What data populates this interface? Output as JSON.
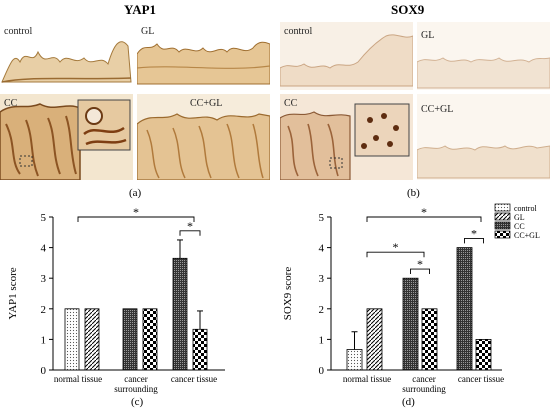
{
  "panels": {
    "a": {
      "title": "YAP1",
      "caption": "(a)",
      "labels": {
        "control": "control",
        "gl": "GL",
        "cc": "CC",
        "ccgl": "CC+GL"
      }
    },
    "b": {
      "title": "SOX9",
      "caption": "(b)",
      "labels": {
        "control": "control",
        "gl": "GL",
        "cc": "CC",
        "ccgl": "CC+GL"
      }
    },
    "c": {
      "caption": "(c)"
    },
    "d": {
      "caption": "(d)"
    }
  },
  "chart_data": [
    {
      "type": "bar",
      "panel": "c",
      "ylabel": "YAP1 score",
      "ylim": [
        0,
        5
      ],
      "yticks": [
        0,
        1,
        2,
        3,
        4,
        5
      ],
      "categories": [
        "normal tissue",
        "cancer surrounding tissue",
        "cancer tissue"
      ],
      "category_lines": [
        [
          "normal tissue"
        ],
        [
          "cancer",
          "surrounding",
          "tissue"
        ],
        [
          "cancer tissue"
        ]
      ],
      "series": [
        {
          "name": "control",
          "pattern": "dots",
          "values": [
            2,
            null,
            null
          ],
          "errors": [
            0,
            null,
            null
          ]
        },
        {
          "name": "GL",
          "pattern": "diag",
          "values": [
            2,
            null,
            null
          ],
          "errors": [
            0,
            null,
            null
          ]
        },
        {
          "name": "CC",
          "pattern": "dense",
          "values": [
            null,
            2,
            3.65
          ],
          "errors": [
            null,
            0,
            0.6
          ]
        },
        {
          "name": "CC+GL",
          "pattern": "checker",
          "values": [
            null,
            2,
            1.33
          ],
          "errors": [
            null,
            0,
            0.6
          ]
        }
      ],
      "significance": [
        {
          "label": "*",
          "from": "normal tissue",
          "to": "cancer tissue",
          "y": 5.0
        },
        {
          "label": "*",
          "from": "cancer tissue:CC",
          "to": "cancer tissue:CC+GL",
          "y": 4.55
        }
      ],
      "legend": "none"
    },
    {
      "type": "bar",
      "panel": "d",
      "ylabel": "SOX9 score",
      "ylim": [
        0,
        5
      ],
      "yticks": [
        0,
        1,
        2,
        3,
        4,
        5
      ],
      "categories": [
        "normal tissue",
        "cancer surrounding tissue",
        "cancer tissue"
      ],
      "category_lines": [
        [
          "normal tissue"
        ],
        [
          "cancer",
          "surrounding",
          "tissue"
        ],
        [
          "cancer tissue"
        ]
      ],
      "series": [
        {
          "name": "control",
          "pattern": "dots",
          "values": [
            0.67,
            null,
            null
          ],
          "errors": [
            0.58,
            null,
            null
          ]
        },
        {
          "name": "GL",
          "pattern": "diag",
          "values": [
            2,
            null,
            null
          ],
          "errors": [
            0,
            null,
            null
          ]
        },
        {
          "name": "CC",
          "pattern": "dense",
          "values": [
            null,
            3,
            4
          ],
          "errors": [
            null,
            0,
            0
          ]
        },
        {
          "name": "CC+GL",
          "pattern": "checker",
          "values": [
            null,
            2,
            1
          ],
          "errors": [
            null,
            0,
            0
          ]
        }
      ],
      "significance": [
        {
          "label": "*",
          "from": "normal tissue",
          "to": "cancer tissue",
          "y": 5.0
        },
        {
          "label": "*",
          "from": "normal tissue",
          "to": "cancer surrounding tissue",
          "y": 3.85
        },
        {
          "label": "*",
          "from": "cancer surrounding tissue:CC",
          "to": "cancer surrounding tissue:CC+GL",
          "y": 3.3
        },
        {
          "label": "*",
          "from": "cancer tissue:CC",
          "to": "cancer tissue:CC+GL",
          "y": 4.3
        }
      ],
      "legend": "top-right",
      "legend_entries": [
        "control",
        "GL",
        "CC",
        "CC+GL"
      ]
    }
  ]
}
